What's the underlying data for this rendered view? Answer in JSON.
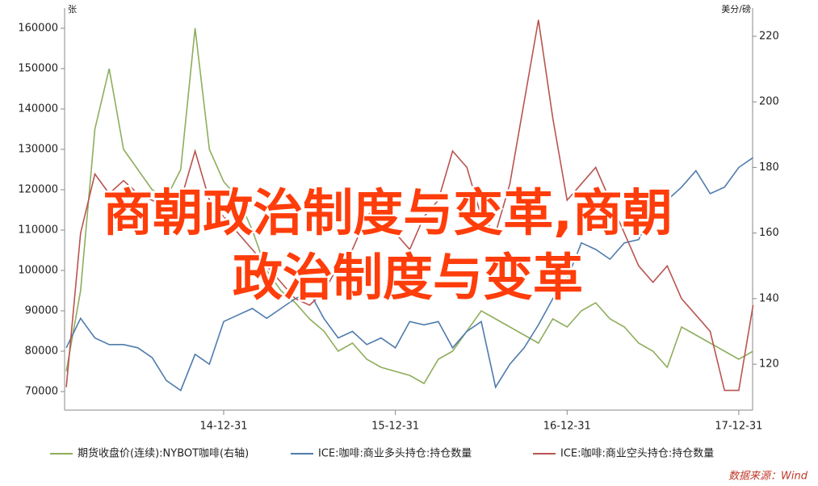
{
  "chart_data": {
    "type": "line",
    "y_unit": "张",
    "y2_unit": "美分/磅",
    "x": [
      "14-01-31",
      "14-02-28",
      "14-03-31",
      "14-04-30",
      "14-05-31",
      "14-06-30",
      "14-07-31",
      "14-08-31",
      "14-09-30",
      "14-10-31",
      "14-11-30",
      "14-12-31",
      "15-01-31",
      "15-02-28",
      "15-03-31",
      "15-04-30",
      "15-05-31",
      "15-06-30",
      "15-07-31",
      "15-08-31",
      "15-09-30",
      "15-10-31",
      "15-11-30",
      "15-12-31",
      "16-01-31",
      "16-02-29",
      "16-03-31",
      "16-04-30",
      "16-05-31",
      "16-06-30",
      "16-07-31",
      "16-08-31",
      "16-09-30",
      "16-10-31",
      "16-11-30",
      "16-12-31",
      "17-01-31",
      "17-02-28",
      "17-03-31",
      "17-04-30",
      "17-05-31",
      "17-06-30",
      "17-07-31",
      "17-08-31",
      "17-09-30",
      "17-10-31",
      "17-11-30",
      "17-12-31",
      "18-01-31"
    ],
    "xticks": [
      "14-12-31",
      "15-12-31",
      "16-12-31",
      "17-12-31"
    ],
    "ylim": [
      65400,
      165000
    ],
    "yticks": [
      70000,
      80000,
      90000,
      100000,
      110000,
      120000,
      130000,
      140000,
      150000,
      160000
    ],
    "y2lim": [
      106,
      228.6
    ],
    "y2ticks": [
      120,
      140,
      160,
      180,
      200,
      220
    ],
    "series": [
      {
        "name": "期货收盘价(连续):NYBOT咖啡(右轴)",
        "color": "#8fad5c",
        "axis": "y",
        "values": [
          75000,
          95000,
          135000,
          150000,
          130000,
          125000,
          120000,
          118000,
          125000,
          160000,
          130000,
          122000,
          118000,
          110000,
          100000,
          95000,
          92000,
          88000,
          85000,
          80000,
          82000,
          78000,
          76000,
          75000,
          74000,
          72000,
          78000,
          80000,
          85000,
          90000,
          88000,
          86000,
          84000,
          82000,
          88000,
          86000,
          90000,
          92000,
          88000,
          86000,
          82000,
          80000,
          76000,
          86000,
          84000,
          82000,
          80000,
          78000,
          80000
        ]
      },
      {
        "name": "ICE:咖啡:商业多头持仓:持仓数量",
        "color": "#4f7bad",
        "axis": "y2",
        "values": [
          125,
          134,
          128,
          126,
          126,
          125,
          122,
          115,
          112,
          123,
          120,
          133,
          135,
          137,
          134,
          137,
          140,
          142,
          134,
          128,
          130,
          126,
          128,
          125,
          133,
          132,
          133,
          125,
          130,
          133,
          113,
          120,
          125,
          132,
          140,
          146,
          157,
          155,
          152,
          157,
          158,
          167,
          170,
          174,
          179,
          172,
          174,
          180,
          183
        ]
      },
      {
        "name": "ICE:咖啡:商业空头持仓:持仓数量",
        "color": "#b85450",
        "axis": "y2",
        "values": [
          113,
          160,
          178,
          172,
          176,
          172,
          170,
          168,
          170,
          185,
          170,
          165,
          160,
          155,
          150,
          145,
          140,
          138,
          142,
          150,
          155,
          165,
          170,
          160,
          155,
          165,
          170,
          185,
          180,
          165,
          160,
          175,
          200,
          225,
          195,
          170,
          175,
          180,
          170,
          160,
          150,
          145,
          150,
          140,
          135,
          130,
          112,
          112,
          138
        ]
      }
    ],
    "source": "数据来源：Wind",
    "overlay": [
      "商朝政治制度与变革,商朝",
      "政治制度与变革"
    ]
  }
}
